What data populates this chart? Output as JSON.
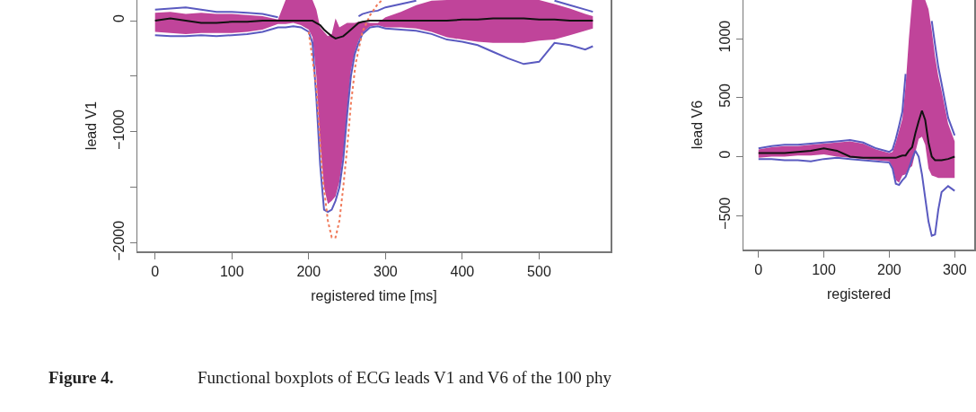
{
  "chart_data": [
    {
      "type": "line",
      "xlabel": "registered time [ms]",
      "ylabel": "lead V1",
      "xlim": [
        -23,
        593
      ],
      "ylim": [
        -2075,
        186
      ],
      "xticks": [
        0,
        100,
        200,
        300,
        400,
        500
      ],
      "yticks": [
        -2000,
        {
          "value": -1500,
          "label": null
        },
        -1000,
        {
          "value": -500,
          "label": null
        },
        0
      ],
      "grid": false,
      "marker": "none",
      "annotations": [
        "Figure 4.",
        "Functional boxplots of ECG leads V1 and V6 of the 100 phy"
      ],
      "series": [
        {
          "type": "line",
          "color": "#5a5ac0",
          "x": [
            0,
            20,
            40,
            60,
            80,
            100,
            120,
            140,
            160,
            170,
            180,
            190,
            200,
            210,
            220,
            230,
            240,
            250,
            260,
            265,
            270,
            280,
            290,
            300,
            320,
            340,
            360,
            380,
            400,
            420,
            440,
            460,
            480,
            500,
            520,
            540,
            560,
            570
          ],
          "values": [
            100,
            110,
            120,
            100,
            80,
            80,
            70,
            60,
            30,
            null,
            null,
            null,
            null,
            null,
            null,
            null,
            null,
            null,
            null,
            40,
            60,
            80,
            90,
            120,
            150,
            180,
            null,
            null,
            null,
            null,
            null,
            null,
            null,
            null,
            180,
            140,
            100,
            80
          ]
        },
        {
          "type": "line",
          "color": "#5a5ac0",
          "x": [
            0,
            20,
            40,
            60,
            80,
            100,
            120,
            140,
            160,
            170,
            180,
            190,
            200,
            205,
            210,
            215,
            220,
            225,
            230,
            235,
            240,
            245,
            250,
            255,
            260,
            265,
            270,
            280,
            290,
            300,
            320,
            340,
            360,
            380,
            400,
            420,
            440,
            460,
            480,
            500,
            520,
            540,
            560,
            570
          ],
          "values": [
            -130,
            -140,
            -140,
            -130,
            -140,
            -130,
            -120,
            -100,
            -60,
            -60,
            -50,
            -60,
            -100,
            -200,
            -700,
            -1300,
            -1700,
            -1720,
            -1700,
            -1620,
            -1500,
            -1250,
            -850,
            -500,
            -300,
            -200,
            -120,
            -60,
            -50,
            -70,
            -80,
            -90,
            -120,
            -170,
            -190,
            -220,
            -280,
            -340,
            -390,
            -370,
            -200,
            -220,
            -260,
            -230
          ]
        },
        {
          "type": "line",
          "color": "#f07a5a",
          "line_style": "dotted",
          "x": [
            200,
            210,
            218,
            225,
            230,
            235,
            240,
            245,
            250,
            255,
            261,
            270,
            280,
            290,
            295
          ],
          "values": [
            -100,
            -600,
            -1400,
            -1800,
            -1950,
            -1950,
            -1800,
            -1500,
            -1150,
            -750,
            -390,
            -100,
            50,
            150,
            180
          ]
        },
        {
          "type": "line",
          "color": "#111111",
          "x": [
            0,
            20,
            40,
            60,
            80,
            100,
            120,
            140,
            160,
            170,
            180,
            190,
            200,
            205,
            210,
            215,
            220,
            225,
            230,
            235,
            240,
            245,
            250,
            255,
            260,
            265,
            270,
            280,
            290,
            300,
            320,
            340,
            360,
            380,
            400,
            420,
            440,
            460,
            480,
            500,
            520,
            540,
            560,
            570
          ],
          "values": [
            0,
            20,
            0,
            -20,
            -20,
            -10,
            -10,
            0,
            0,
            0,
            0,
            0,
            0,
            0,
            -20,
            -40,
            -80,
            -110,
            -140,
            -160,
            -150,
            -140,
            -110,
            -80,
            -50,
            -20,
            -10,
            0,
            0,
            0,
            0,
            0,
            0,
            0,
            10,
            10,
            20,
            20,
            20,
            10,
            10,
            0,
            0,
            0
          ],
          "upper": [
            70,
            80,
            60,
            70,
            60,
            60,
            50,
            40,
            10,
            186,
            186,
            186,
            186,
            186,
            100,
            -60,
            -100,
            -140,
            -120,
            20,
            -60,
            -40,
            -20,
            -20,
            -20,
            -10,
            -10,
            -20,
            -20,
            30,
            80,
            140,
            180,
            186,
            186,
            186,
            186,
            186,
            186,
            186,
            150,
            110,
            60,
            40
          ],
          "lower": [
            -100,
            -110,
            -120,
            -110,
            -110,
            -110,
            -100,
            -80,
            -30,
            -30,
            -20,
            -40,
            -80,
            -150,
            -500,
            -1100,
            -1500,
            -1650,
            -1620,
            -1580,
            -1450,
            -1200,
            -800,
            -450,
            -280,
            -180,
            -110,
            -50,
            -40,
            -60,
            -60,
            -70,
            -100,
            -150,
            -170,
            -190,
            -200,
            -200,
            -200,
            -180,
            -170,
            -130,
            -90,
            -70
          ]
        }
      ]
    },
    {
      "type": "line",
      "xlabel": "registered",
      "ylabel": "lead V6",
      "xlim": [
        -23,
        330
      ],
      "ylim": [
        -787,
        1327
      ],
      "xticks": [
        0,
        100,
        200,
        300
      ],
      "yticks": [
        -500,
        0,
        500,
        1000
      ],
      "grid": false,
      "marker": "none",
      "series": [
        {
          "type": "line",
          "color": "#5a5ac0",
          "x": [
            0,
            20,
            40,
            60,
            80,
            100,
            120,
            140,
            160,
            180,
            200,
            205,
            210,
            215,
            220,
            225,
            230,
            235,
            240,
            245,
            250,
            255,
            260,
            265,
            270,
            275,
            280,
            290,
            300
          ],
          "values": [
            70,
            90,
            100,
            100,
            110,
            120,
            130,
            140,
            120,
            70,
            40,
            60,
            150,
            260,
            380,
            700,
            null,
            null,
            null,
            null,
            null,
            null,
            null,
            1150,
            950,
            760,
            620,
            330,
            180
          ]
        },
        {
          "type": "line",
          "color": "#5a5ac0",
          "x": [
            0,
            20,
            40,
            60,
            80,
            100,
            120,
            140,
            160,
            180,
            200,
            205,
            210,
            215,
            220,
            225,
            230,
            235,
            240,
            245,
            250,
            255,
            260,
            265,
            270,
            275,
            280,
            290,
            300
          ],
          "values": [
            -20,
            -20,
            -30,
            -30,
            -40,
            -20,
            -10,
            -20,
            -30,
            -40,
            -50,
            -100,
            -230,
            -240,
            -200,
            -170,
            -100,
            -20,
            50,
            0,
            -150,
            -350,
            -550,
            -670,
            -660,
            -450,
            -300,
            -250,
            -290
          ]
        },
        {
          "type": "line",
          "color": "#111111",
          "x": [
            0,
            20,
            40,
            60,
            80,
            100,
            120,
            140,
            160,
            180,
            200,
            205,
            210,
            215,
            220,
            225,
            230,
            235,
            240,
            245,
            250,
            255,
            260,
            265,
            270,
            275,
            280,
            290,
            300
          ],
          "values": [
            30,
            30,
            30,
            40,
            50,
            70,
            50,
            0,
            -10,
            -10,
            -10,
            -10,
            -10,
            0,
            10,
            10,
            50,
            80,
            200,
            300,
            390,
            310,
            120,
            0,
            -30,
            -30,
            -30,
            -20,
            0
          ],
          "upper": [
            60,
            80,
            90,
            90,
            100,
            110,
            120,
            130,
            110,
            60,
            30,
            40,
            120,
            220,
            320,
            600,
            1000,
            1327,
            1327,
            1327,
            1327,
            1327,
            1250,
            1070,
            850,
            680,
            560,
            280,
            130
          ],
          "lower": [
            -10,
            0,
            0,
            10,
            10,
            20,
            0,
            -10,
            -20,
            -30,
            -40,
            -90,
            -200,
            -220,
            -160,
            -150,
            -100,
            -80,
            40,
            150,
            170,
            100,
            -100,
            -160,
            -170,
            -180,
            -180,
            -180,
            -180
          ]
        }
      ]
    }
  ]
}
